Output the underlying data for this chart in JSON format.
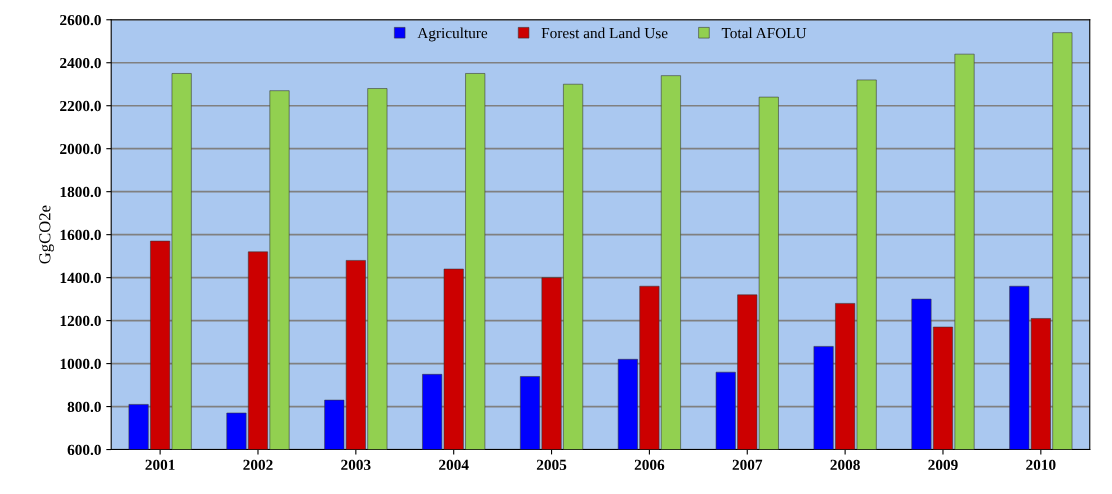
{
  "chart_data": {
    "type": "bar",
    "ylabel": "GgCO2e",
    "categories": [
      "2001",
      "2002",
      "2003",
      "2004",
      "2005",
      "2006",
      "2007",
      "2008",
      "2009",
      "2010"
    ],
    "series": [
      {
        "name": "Agriculture",
        "color": "#0000ff",
        "values": [
          810,
          770,
          830,
          950,
          940,
          1020,
          960,
          1080,
          1300,
          1360
        ]
      },
      {
        "name": "Forest and Land Use",
        "color": "#cc0000",
        "values": [
          1570,
          1520,
          1480,
          1440,
          1400,
          1360,
          1320,
          1280,
          1170,
          1210
        ]
      },
      {
        "name": "Total AFOLU",
        "color": "#92d050",
        "values": [
          2350,
          2270,
          2280,
          2350,
          2300,
          2340,
          2240,
          2320,
          2440,
          2540
        ]
      }
    ],
    "ylim": [
      600,
      2600
    ],
    "yticks": [
      {
        "value": 600,
        "label": "600.0"
      },
      {
        "value": 800,
        "label": "800.0"
      },
      {
        "value": 1000,
        "label": "1000.0"
      },
      {
        "value": 1200,
        "label": "1200.0"
      },
      {
        "value": 1400,
        "label": "1400.0"
      },
      {
        "value": 1600,
        "label": "1600.0"
      },
      {
        "value": 1800,
        "label": "1800.0"
      },
      {
        "value": 2000,
        "label": "2000.0"
      },
      {
        "value": 2200,
        "label": "2200.0"
      },
      {
        "value": 2400,
        "label": "2400.0"
      },
      {
        "value": 2600,
        "label": "2600.0"
      }
    ],
    "grid": "y",
    "legend": "top"
  }
}
